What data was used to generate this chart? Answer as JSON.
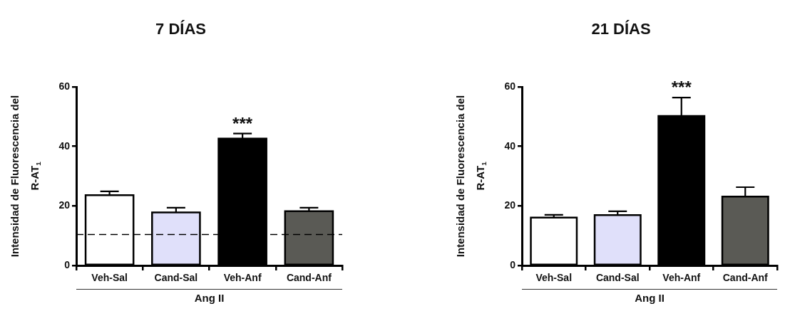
{
  "chart_data": [
    {
      "type": "bar",
      "title": "7 DÍAS",
      "ylabel": "Intensidad de Fluorescencia del R-AT$_{1}$",
      "xlabel": "Ang II",
      "categories": [
        "Veh-Sal",
        "Cand-Sal",
        "Veh-Anf",
        "Cand-Anf"
      ],
      "values": [
        23.6,
        17.8,
        42.6,
        18.2
      ],
      "colors": [
        "#ffffff",
        "#e0e0fa",
        "#000000",
        "#5a5a55"
      ],
      "errors": [
        [
          23.6,
          24.9
        ],
        [
          17.8,
          19.4
        ],
        [
          42.6,
          44.3
        ],
        [
          18.2,
          19.4
        ]
      ],
      "ylim": [
        0,
        60
      ],
      "yticks": [
        0,
        20,
        40,
        60
      ],
      "ref_lines": [
        {
          "axis": "y",
          "value": 10.4,
          "label": null,
          "line_style": "dashed"
        }
      ],
      "annotations": [
        {
          "text": "***",
          "x": "Veh-Anf",
          "y": 44.3
        }
      ]
    },
    {
      "type": "bar",
      "title": "21 DÍAS",
      "ylabel": "Intensidad de Fluorescencia del R-AT$_{1}$",
      "xlabel": "Ang II",
      "categories": [
        "Veh-Sal",
        "Cand-Sal",
        "Veh-Anf",
        "Cand-Anf"
      ],
      "values": [
        16.1,
        16.9,
        50.2,
        23.1
      ],
      "colors": [
        "#ffffff",
        "#e0e0fa",
        "#000000",
        "#5a5a55"
      ],
      "errors": [
        [
          16.1,
          17.0
        ],
        [
          16.9,
          18.2
        ],
        [
          50.2,
          56.4
        ],
        [
          23.1,
          26.3
        ]
      ],
      "ylim": [
        0,
        60
      ],
      "yticks": [
        0,
        20,
        40,
        60
      ],
      "annotations": [
        {
          "text": "***",
          "x": "Veh-Anf",
          "y": 56.4
        }
      ]
    }
  ]
}
